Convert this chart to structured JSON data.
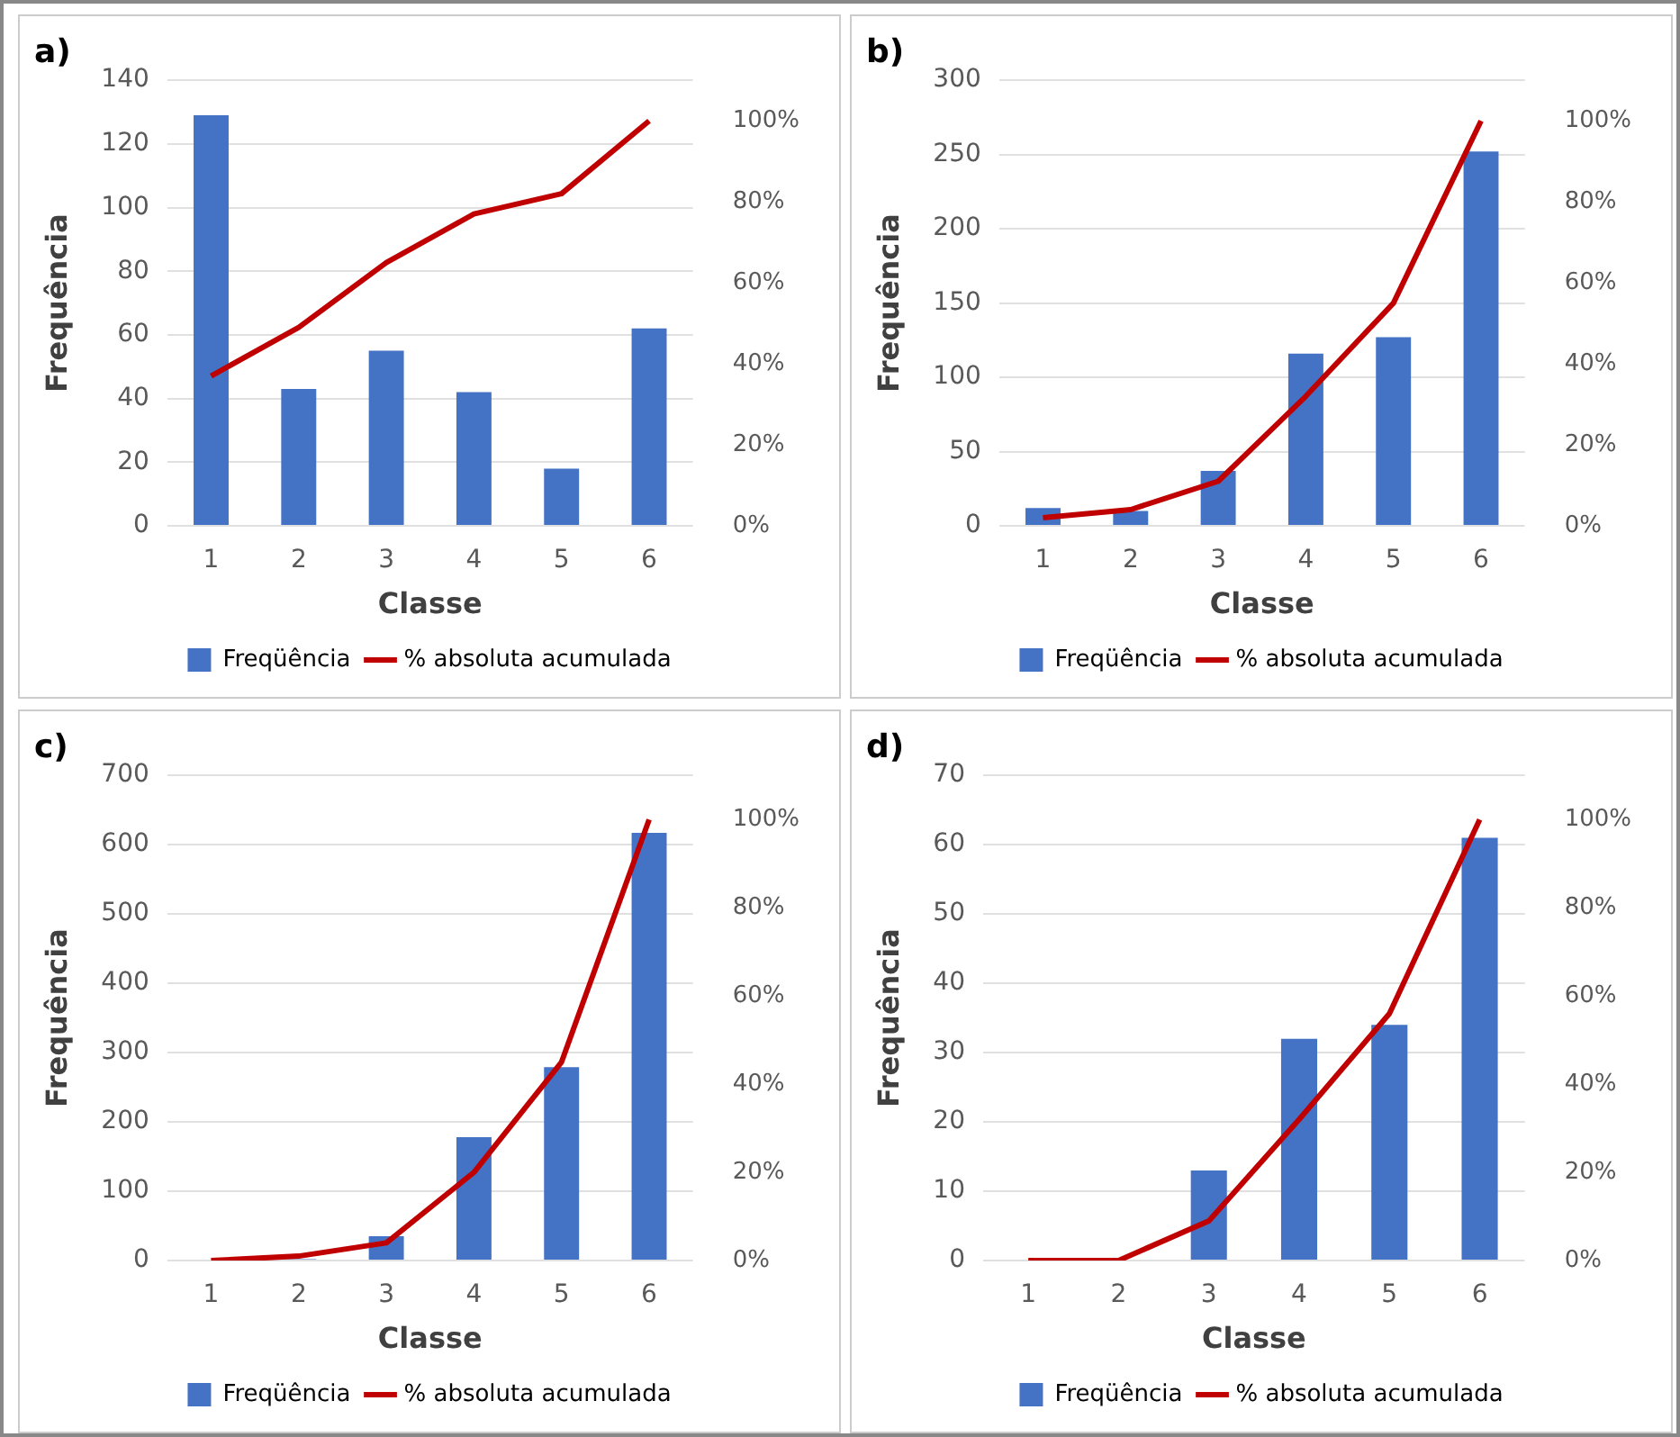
{
  "chart_data": [
    {
      "type": "bar",
      "title": "a)",
      "xlabel": "Classe",
      "ylabel": "Frequência",
      "categories": [
        "1",
        "2",
        "3",
        "4",
        "5",
        "6"
      ],
      "series": [
        {
          "name": "Freqüência",
          "color": "#4472c4",
          "values": [
            129,
            43,
            55,
            42,
            18,
            62
          ]
        },
        {
          "name": "% absoluta acumulada",
          "type": "line",
          "axis": "y2",
          "color": "#c00000",
          "values": [
            37,
            49,
            65,
            77,
            82,
            100
          ]
        }
      ],
      "ylim": [
        0,
        140
      ],
      "yticks": [
        0,
        20,
        40,
        60,
        80,
        100,
        120,
        140
      ],
      "y2lim": [
        0,
        110
      ],
      "y2ticks": [
        {
          "value": 0,
          "label": "0%"
        },
        {
          "value": 20,
          "label": "20%"
        },
        {
          "value": 40,
          "label": "40%"
        },
        {
          "value": 60,
          "label": "60%"
        },
        {
          "value": 80,
          "label": "80%"
        },
        {
          "value": 100,
          "label": "100%"
        }
      ],
      "grid": "y",
      "legend": "bottom",
      "marker": "none"
    },
    {
      "type": "bar",
      "title": "b)",
      "xlabel": "Classe",
      "ylabel": "Frequência",
      "categories": [
        "1",
        "2",
        "3",
        "4",
        "5",
        "6"
      ],
      "series": [
        {
          "name": "Freqüência",
          "color": "#4472c4",
          "values": [
            12,
            10,
            37,
            116,
            127,
            252
          ]
        },
        {
          "name": "% absoluta acumulada",
          "type": "line",
          "axis": "y2",
          "color": "#c00000",
          "values": [
            2,
            4,
            11,
            32,
            55,
            100
          ]
        }
      ],
      "ylim": [
        0,
        300
      ],
      "yticks": [
        0,
        50,
        100,
        150,
        200,
        250,
        300
      ],
      "y2lim": [
        0,
        110
      ],
      "y2ticks": [
        {
          "value": 0,
          "label": "0%"
        },
        {
          "value": 20,
          "label": "20%"
        },
        {
          "value": 40,
          "label": "40%"
        },
        {
          "value": 60,
          "label": "60%"
        },
        {
          "value": 80,
          "label": "80%"
        },
        {
          "value": 100,
          "label": "100%"
        }
      ],
      "grid": "y",
      "legend": "bottom",
      "marker": "none"
    },
    {
      "type": "bar",
      "title": "c)",
      "xlabel": "Classe",
      "ylabel": "Frequência",
      "categories": [
        "1",
        "2",
        "3",
        "4",
        "5",
        "6"
      ],
      "series": [
        {
          "name": "Freqüência",
          "color": "#4472c4",
          "values": [
            0,
            2,
            35,
            178,
            279,
            617
          ]
        },
        {
          "name": "% absoluta acumulada",
          "type": "line",
          "axis": "y2",
          "color": "#c00000",
          "values": [
            0,
            1,
            4,
            20,
            45,
            100
          ]
        }
      ],
      "ylim": [
        0,
        700
      ],
      "yticks": [
        0,
        100,
        200,
        300,
        400,
        500,
        600,
        700
      ],
      "y2lim": [
        0,
        110
      ],
      "y2ticks": [
        {
          "value": 0,
          "label": "0%"
        },
        {
          "value": 20,
          "label": "20%"
        },
        {
          "value": 40,
          "label": "40%"
        },
        {
          "value": 60,
          "label": "60%"
        },
        {
          "value": 80,
          "label": "80%"
        },
        {
          "value": 100,
          "label": "100%"
        }
      ],
      "grid": "y",
      "legend": "bottom",
      "marker": "none"
    },
    {
      "type": "bar",
      "title": "d)",
      "xlabel": "Classe",
      "ylabel": "Frequência",
      "categories": [
        "1",
        "2",
        "3",
        "4",
        "5",
        "6"
      ],
      "series": [
        {
          "name": "Freqüência",
          "color": "#4472c4",
          "values": [
            0,
            0,
            13,
            32,
            34,
            61
          ]
        },
        {
          "name": "% absoluta acumulada",
          "type": "line",
          "axis": "y2",
          "color": "#c00000",
          "values": [
            0,
            0,
            9,
            32,
            56,
            100
          ]
        }
      ],
      "ylim": [
        0,
        70
      ],
      "yticks": [
        0,
        10,
        20,
        30,
        40,
        50,
        60,
        70
      ],
      "y2lim": [
        0,
        110
      ],
      "y2ticks": [
        {
          "value": 0,
          "label": "0%"
        },
        {
          "value": 20,
          "label": "20%"
        },
        {
          "value": 40,
          "label": "40%"
        },
        {
          "value": 60,
          "label": "60%"
        },
        {
          "value": 80,
          "label": "80%"
        },
        {
          "value": 100,
          "label": "100%"
        }
      ],
      "grid": "y",
      "legend": "bottom",
      "marker": "none"
    }
  ]
}
